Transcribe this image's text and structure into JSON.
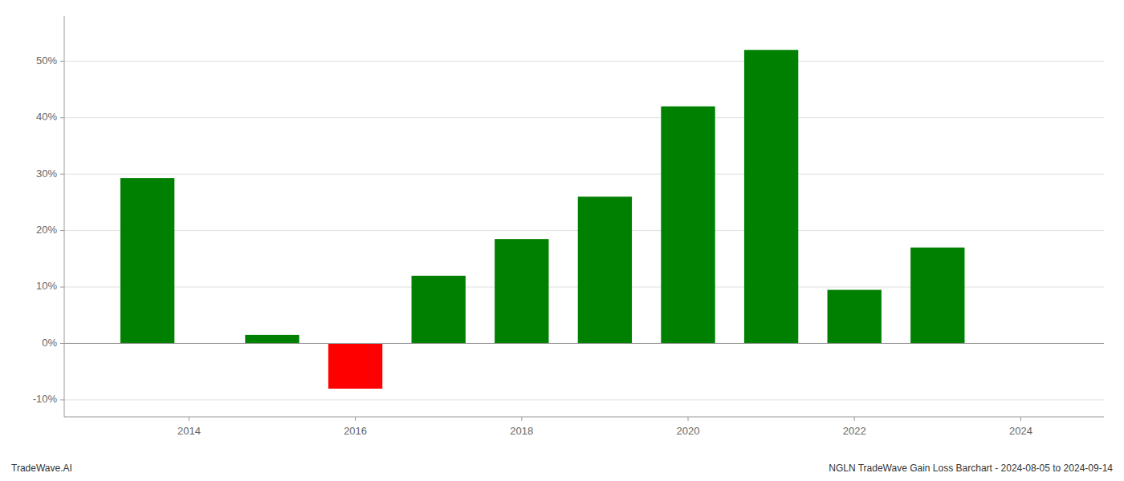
{
  "chart_data": {
    "type": "bar",
    "x": [
      2013.5,
      2015,
      2016,
      2017,
      2018,
      2019,
      2020,
      2021,
      2022,
      2023
    ],
    "values": [
      29.3,
      1.5,
      -8.0,
      12.0,
      18.5,
      26.0,
      42.0,
      52.0,
      9.5,
      17.0
    ],
    "colors": [
      "#008000",
      "#008000",
      "#ff0000",
      "#008000",
      "#008000",
      "#008000",
      "#008000",
      "#008000",
      "#008000",
      "#008000"
    ],
    "xlim": [
      2012.5,
      2025.0
    ],
    "xticks": [
      2014,
      2016,
      2018,
      2020,
      2022,
      2024
    ],
    "ylim": [
      -13,
      58
    ],
    "yticks": [
      {
        "value": -10,
        "label": "-10%"
      },
      {
        "value": 0,
        "label": "0%"
      },
      {
        "value": 10,
        "label": "10%"
      },
      {
        "value": 20,
        "label": "20%"
      },
      {
        "value": 30,
        "label": "30%"
      },
      {
        "value": 40,
        "label": "40%"
      },
      {
        "value": 50,
        "label": "50%"
      }
    ],
    "grid": true,
    "annotations": [
      "TradeWave.AI",
      "NGLN TradeWave Gain Loss Barchart - 2024-08-05 to 2024-09-14"
    ]
  }
}
